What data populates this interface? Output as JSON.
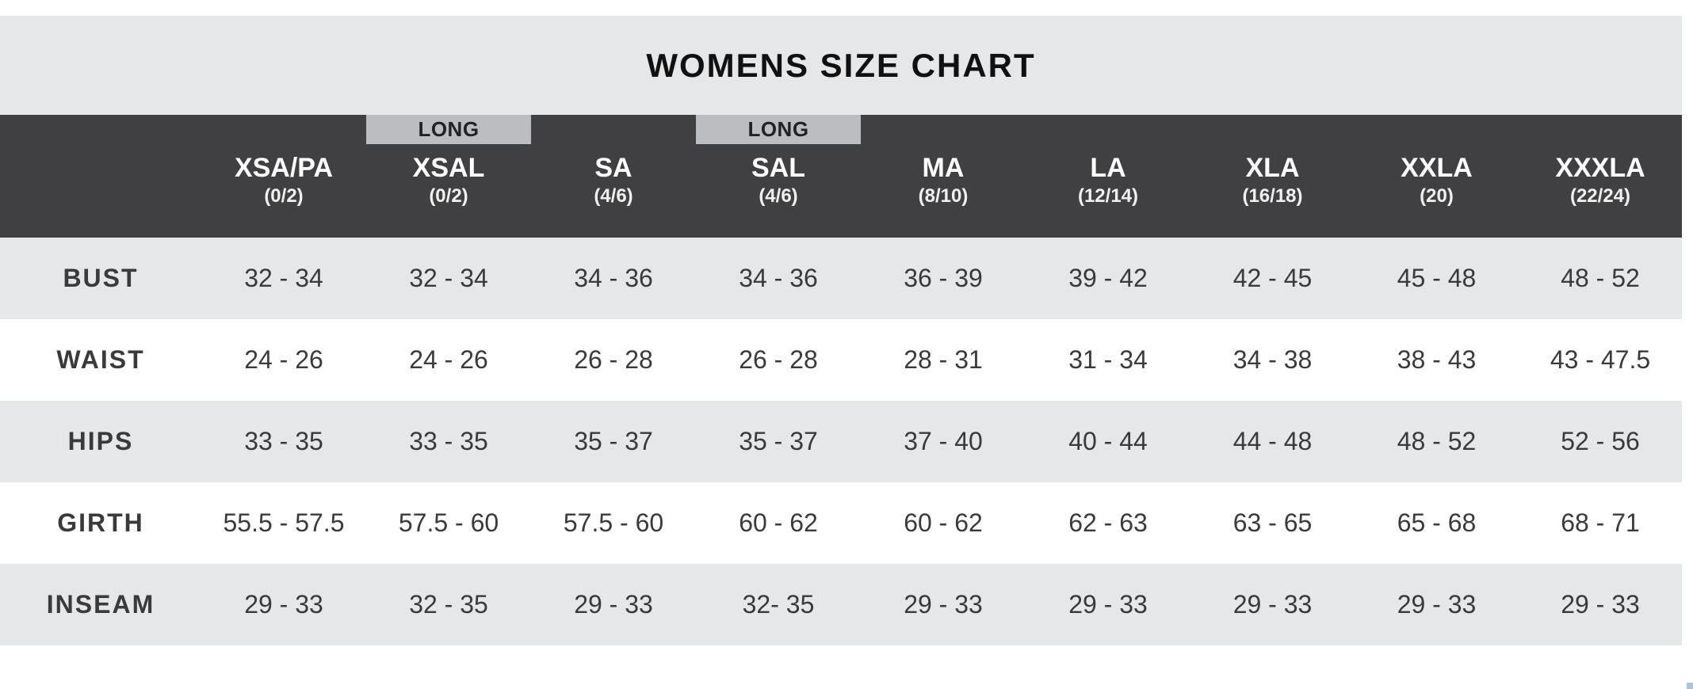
{
  "title": "WOMENS SIZE CHART",
  "columns": [
    {
      "long": "",
      "code": "XSA/PA",
      "num": "(0/2)"
    },
    {
      "long": "LONG",
      "code": "XSAL",
      "num": "(0/2)"
    },
    {
      "long": "",
      "code": "SA",
      "num": "(4/6)"
    },
    {
      "long": "LONG",
      "code": "SAL",
      "num": "(4/6)"
    },
    {
      "long": "",
      "code": "MA",
      "num": "(8/10)"
    },
    {
      "long": "",
      "code": "LA",
      "num": "(12/14)"
    },
    {
      "long": "",
      "code": "XLA",
      "num": "(16/18)"
    },
    {
      "long": "",
      "code": "XXLA",
      "num": "(20)"
    },
    {
      "long": "",
      "code": "XXXLA",
      "num": "(22/24)"
    }
  ],
  "rows": [
    {
      "label": "BUST",
      "values": [
        "32 - 34",
        "32 - 34",
        "34 - 36",
        "34 - 36",
        "36 - 39",
        "39 - 42",
        "42 - 45",
        "45 - 48",
        "48 - 52"
      ]
    },
    {
      "label": "WAIST",
      "values": [
        "24 - 26",
        "24 - 26",
        "26 - 28",
        "26 - 28",
        "28 - 31",
        "31 - 34",
        "34 - 38",
        "38 - 43",
        "43 - 47.5"
      ]
    },
    {
      "label": "HIPS",
      "values": [
        "33 - 35",
        "33 - 35",
        "35 - 37",
        "35 - 37",
        "37 - 40",
        "40 - 44",
        "44 - 48",
        "48 - 52",
        "52 - 56"
      ]
    },
    {
      "label": "GIRTH",
      "values": [
        "55.5 - 57.5",
        "57.5 - 60",
        "57.5 - 60",
        "60 - 62",
        "60 - 62",
        "62 - 63",
        "63 - 65",
        "65 - 68",
        "68 - 71"
      ]
    },
    {
      "label": "INSEAM",
      "values": [
        "29 - 33",
        "32 - 35",
        "29 - 33",
        "32- 35",
        "29 - 33",
        "29 - 33",
        "29 - 33",
        "29 - 33",
        "29 - 33"
      ]
    }
  ],
  "colors": {
    "header_bg": "#404042",
    "long_tag_bg": "#bcbdc0",
    "title_bg": "#e6e7e9",
    "shade_row_bg": "#e6e7e9",
    "text": "#3a3a3c"
  }
}
